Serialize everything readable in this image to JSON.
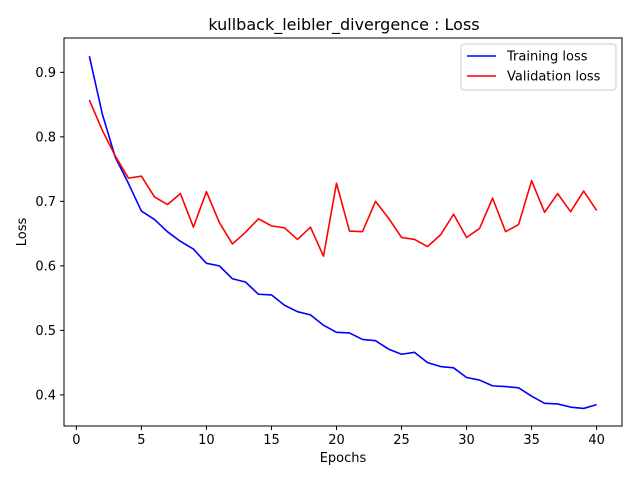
{
  "chart_data": {
    "type": "line",
    "title": "kullback_leibler_divergence : Loss",
    "xlabel": "Epochs",
    "ylabel": "Loss",
    "xlim": [
      -0.95,
      41.95
    ],
    "ylim": [
      0.3518,
      0.9532
    ],
    "x_ticks": [
      0,
      5,
      10,
      15,
      20,
      25,
      30,
      35,
      40
    ],
    "y_ticks": [
      0.4,
      0.5,
      0.6,
      0.7,
      0.8,
      0.9
    ],
    "grid": false,
    "legend_position": "top-right",
    "x": [
      1,
      2,
      3,
      4,
      5,
      6,
      7,
      8,
      9,
      10,
      11,
      12,
      13,
      14,
      15,
      16,
      17,
      18,
      19,
      20,
      21,
      22,
      23,
      24,
      25,
      26,
      27,
      28,
      29,
      30,
      31,
      32,
      33,
      34,
      35,
      36,
      37,
      38,
      39,
      40
    ],
    "series": [
      {
        "name": "Training loss",
        "color": "#0000ff",
        "values": [
          0.925,
          0.835,
          0.768,
          0.728,
          0.685,
          0.672,
          0.653,
          0.638,
          0.626,
          0.604,
          0.6,
          0.58,
          0.575,
          0.556,
          0.555,
          0.539,
          0.529,
          0.524,
          0.508,
          0.497,
          0.496,
          0.486,
          0.484,
          0.471,
          0.463,
          0.466,
          0.45,
          0.444,
          0.442,
          0.427,
          0.423,
          0.414,
          0.413,
          0.411,
          0.398,
          0.387,
          0.386,
          0.381,
          0.379,
          0.385
        ]
      },
      {
        "name": "Validation loss",
        "color": "#ff0000",
        "values": [
          0.857,
          0.81,
          0.77,
          0.736,
          0.739,
          0.707,
          0.695,
          0.712,
          0.66,
          0.715,
          0.667,
          0.634,
          0.652,
          0.673,
          0.662,
          0.659,
          0.641,
          0.66,
          0.615,
          0.728,
          0.654,
          0.653,
          0.7,
          0.674,
          0.644,
          0.641,
          0.63,
          0.648,
          0.68,
          0.644,
          0.658,
          0.705,
          0.653,
          0.664,
          0.732,
          0.683,
          0.712,
          0.684,
          0.716,
          0.686
        ]
      }
    ]
  }
}
